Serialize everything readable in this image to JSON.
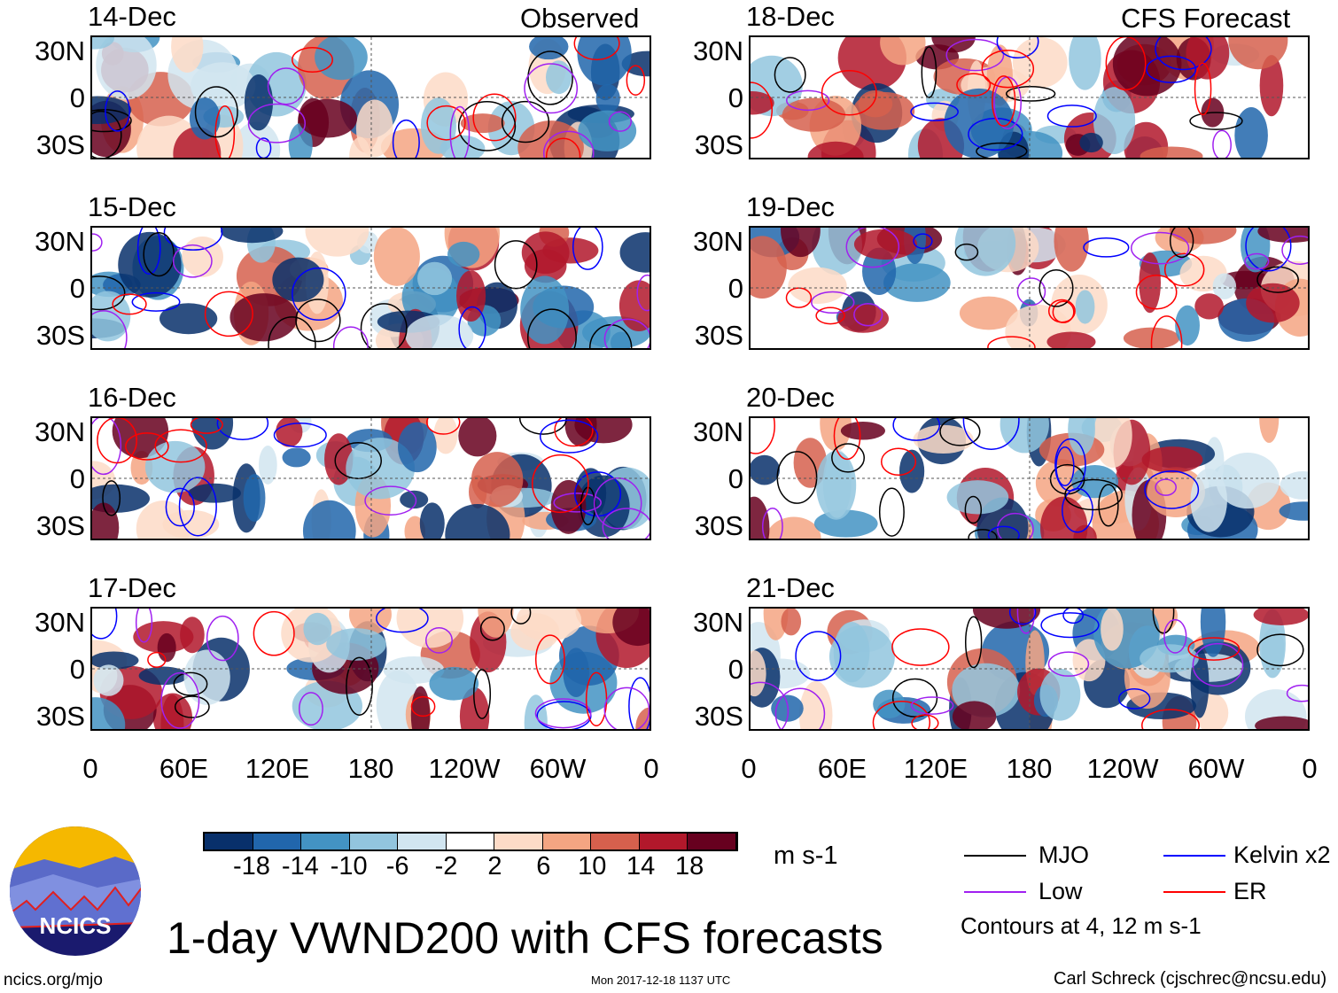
{
  "chart_data": {
    "type": "heatmap",
    "title": "1-day VWND200 with CFS forecasts",
    "units": "m s-1",
    "observed_label": "Observed",
    "forecast_label": "CFS Forecast",
    "panels": [
      {
        "date": "14-Dec",
        "kind": "observed"
      },
      {
        "date": "15-Dec",
        "kind": "observed"
      },
      {
        "date": "16-Dec",
        "kind": "observed"
      },
      {
        "date": "17-Dec",
        "kind": "observed"
      },
      {
        "date": "18-Dec",
        "kind": "forecast"
      },
      {
        "date": "19-Dec",
        "kind": "forecast"
      },
      {
        "date": "20-Dec",
        "kind": "forecast"
      },
      {
        "date": "21-Dec",
        "kind": "forecast"
      }
    ],
    "y_ticks": [
      "30N",
      "0",
      "30S"
    ],
    "x_ticks": [
      "0",
      "60E",
      "120E",
      "180",
      "120W",
      "60W",
      "0"
    ],
    "colorbar": {
      "levels": [
        "-18",
        "-14",
        "-10",
        "-6",
        "-2",
        "2",
        "6",
        "10",
        "14",
        "18"
      ],
      "colors": [
        "#08306b",
        "#2166ac",
        "#4393c3",
        "#92c5de",
        "#d1e5f0",
        "#ffffff",
        "#fddbc7",
        "#f4a582",
        "#d6604d",
        "#b2182b",
        "#67001f"
      ]
    },
    "legend": [
      {
        "label": "MJO",
        "color": "#000000"
      },
      {
        "label": "Kelvin x2",
        "color": "#0000ff"
      },
      {
        "label": "Low",
        "color": "#a020f0"
      },
      {
        "label": "ER",
        "color": "#ff0000"
      }
    ],
    "contour_note": "Contours at 4, 12 m s-1"
  },
  "footer": {
    "logo_text": "NCICS",
    "url": "ncics.org/mjo",
    "timestamp": "Mon 2017-12-18 1137 UTC",
    "author": "Carl Schreck (cjschrec@ncsu.edu)"
  }
}
